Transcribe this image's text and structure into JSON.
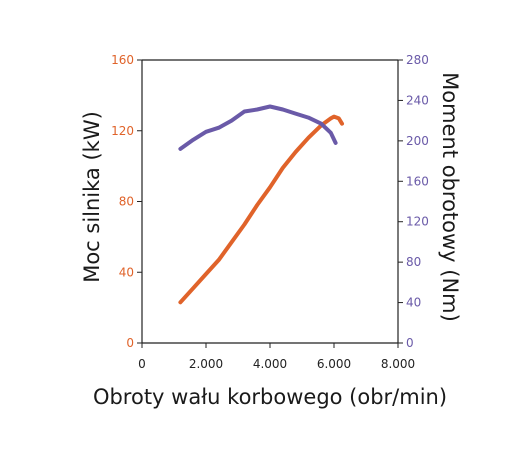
{
  "chart_data": {
    "type": "line",
    "xlabel": "Obroty wału korbowego (obr/min)",
    "ylabel_left": "Moc silnika (kW)",
    "ylabel_right": "Moment obrotowy (Nm)",
    "xlim": [
      0,
      8000
    ],
    "ylim_left": [
      0,
      160
    ],
    "ylim_right": [
      0,
      280
    ],
    "xticks": [
      {
        "value": 0,
        "label": "0"
      },
      {
        "value": 2000,
        "label": "2.000"
      },
      {
        "value": 4000,
        "label": "4.000"
      },
      {
        "value": 6000,
        "label": "6.000"
      },
      {
        "value": 8000,
        "label": "8.000"
      }
    ],
    "yticks_left": [
      {
        "value": 0,
        "label": "0"
      },
      {
        "value": 40,
        "label": "40"
      },
      {
        "value": 80,
        "label": "80"
      },
      {
        "value": 120,
        "label": "120"
      },
      {
        "value": 160,
        "label": "160"
      }
    ],
    "yticks_right": [
      {
        "value": 0,
        "label": "0"
      },
      {
        "value": 40,
        "label": "40"
      },
      {
        "value": 80,
        "label": "80"
      },
      {
        "value": 120,
        "label": "120"
      },
      {
        "value": 160,
        "label": "160"
      },
      {
        "value": 200,
        "label": "200"
      },
      {
        "value": 240,
        "label": "240"
      },
      {
        "value": 280,
        "label": "280"
      }
    ],
    "grid": false,
    "legend": "none",
    "series": [
      {
        "axis": "left",
        "color": "#e0632a",
        "points": [
          [
            1200,
            23
          ],
          [
            1600,
            31
          ],
          [
            2000,
            39
          ],
          [
            2400,
            47
          ],
          [
            2800,
            57
          ],
          [
            3200,
            67
          ],
          [
            3600,
            78
          ],
          [
            4000,
            88
          ],
          [
            4400,
            99
          ],
          [
            4800,
            108
          ],
          [
            5200,
            116
          ],
          [
            5600,
            123
          ],
          [
            5900,
            127
          ],
          [
            6000,
            128
          ],
          [
            6150,
            127
          ],
          [
            6250,
            124
          ]
        ]
      },
      {
        "axis": "right",
        "color": "#6a5aa8",
        "points": [
          [
            1200,
            192
          ],
          [
            1600,
            201
          ],
          [
            2000,
            209
          ],
          [
            2400,
            213
          ],
          [
            2800,
            220
          ],
          [
            3200,
            229
          ],
          [
            3600,
            231
          ],
          [
            4000,
            234
          ],
          [
            4400,
            231
          ],
          [
            4800,
            227
          ],
          [
            5200,
            223
          ],
          [
            5600,
            217
          ],
          [
            5900,
            208
          ],
          [
            6050,
            198
          ]
        ]
      }
    ]
  }
}
